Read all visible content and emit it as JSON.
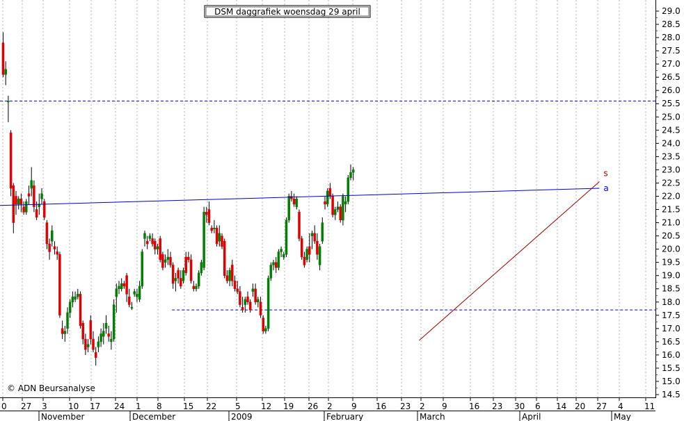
{
  "chart_data": {
    "type": "candlestick",
    "title": "DSM daggrafiek woensdag 29 april",
    "credit": "© ADN Beursanalyse",
    "ylim": [
      14.3,
      29.3
    ],
    "y_ticks": [
      "29.0",
      "28.5",
      "28.0",
      "27.5",
      "27.0",
      "26.5",
      "26.0",
      "25.5",
      "25.0",
      "24.5",
      "24.0",
      "23.5",
      "23.0",
      "22.5",
      "22.0",
      "21.5",
      "21.0",
      "20.5",
      "20.0",
      "19.5",
      "19.0",
      "18.5",
      "18.0",
      "17.5",
      "17.0",
      "16.5",
      "16.0",
      "15.5",
      "15.0",
      "14.5"
    ],
    "x_tick_labels": [
      "0",
      "27",
      "3",
      "10",
      "17",
      "24",
      "1",
      "8",
      "15",
      "22",
      "5",
      "12",
      "19",
      "26",
      "2",
      "9",
      "16",
      "23",
      "2",
      "9",
      "16",
      "23",
      "30",
      "6",
      "14",
      "20",
      "27",
      "4",
      "11"
    ],
    "month_labels": [
      "November",
      "December",
      "2009",
      "February",
      "March",
      "April",
      "May"
    ],
    "colors": {
      "up": "#008000",
      "down": "#e00000",
      "support": "#0000cc",
      "resistance": "#0000cc",
      "trend_a": "#0000cc",
      "trend_s": "#990000",
      "grid": "#b0b0b0"
    },
    "horizontal_lines": [
      {
        "value": 25.6,
        "style": "dashed"
      },
      {
        "value": 17.7,
        "style": "dashed",
        "start_index": 66
      }
    ],
    "trendlines": [
      {
        "label": "a",
        "from": {
          "index": 0,
          "value": 21.65
        },
        "to": {
          "index": 232,
          "value": 22.3
        }
      },
      {
        "label": "s",
        "from": {
          "index": 162,
          "value": 16.55
        },
        "to": {
          "index": 232,
          "value": 22.55
        }
      }
    ],
    "ohlc": [
      [
        27.8,
        28.2,
        26.5,
        26.6
      ],
      [
        26.6,
        27.1,
        26.2,
        26.8
      ],
      [
        25.6,
        25.8,
        24.8,
        25.6
      ],
      [
        24.4,
        24.5,
        22.0,
        22.3
      ],
      [
        22.4,
        22.5,
        20.6,
        21.0
      ],
      [
        22.0,
        22.2,
        21.3,
        21.7
      ],
      [
        21.7,
        22.0,
        21.5,
        21.9
      ],
      [
        21.9,
        22.1,
        21.4,
        21.7
      ],
      [
        21.6,
        21.8,
        21.3,
        21.4
      ],
      [
        21.4,
        21.9,
        21.3,
        21.8
      ],
      [
        22.1,
        22.4,
        21.7,
        22.0
      ],
      [
        22.3,
        23.1,
        22.0,
        22.6
      ],
      [
        22.4,
        22.6,
        21.4,
        21.6
      ],
      [
        21.5,
        21.8,
        21.1,
        21.2
      ],
      [
        21.6,
        22.1,
        21.3,
        21.7
      ],
      [
        21.9,
        22.3,
        21.7,
        22.1
      ],
      [
        21.8,
        21.9,
        21.1,
        21.2
      ],
      [
        21.0,
        21.1,
        20.0,
        20.2
      ],
      [
        20.2,
        20.4,
        19.6,
        19.9
      ],
      [
        20.3,
        20.9,
        20.1,
        20.7
      ],
      [
        20.1,
        20.3,
        19.8,
        20.0
      ],
      [
        19.9,
        20.1,
        19.6,
        19.8
      ],
      [
        19.8,
        19.9,
        17.4,
        17.5
      ],
      [
        17.0,
        17.3,
        16.6,
        16.8
      ],
      [
        16.8,
        17.1,
        16.5,
        16.9
      ],
      [
        17.0,
        17.8,
        16.8,
        17.6
      ],
      [
        17.6,
        18.1,
        17.4,
        18.0
      ],
      [
        18.0,
        18.4,
        17.8,
        18.2
      ],
      [
        18.1,
        18.4,
        18.0,
        18.2
      ],
      [
        18.2,
        18.5,
        18.1,
        18.3
      ],
      [
        18.3,
        18.4,
        17.0,
        17.1
      ],
      [
        17.2,
        17.3,
        16.4,
        16.6
      ],
      [
        16.6,
        16.8,
        16.0,
        16.2
      ],
      [
        16.3,
        16.6,
        16.1,
        16.4
      ],
      [
        17.3,
        17.5,
        16.4,
        16.6
      ],
      [
        16.6,
        16.9,
        16.1,
        16.2
      ],
      [
        16.1,
        16.3,
        15.6,
        15.9
      ],
      [
        16.3,
        16.7,
        16.1,
        16.5
      ],
      [
        16.5,
        17.0,
        16.3,
        16.8
      ],
      [
        16.7,
        17.2,
        16.4,
        16.9
      ],
      [
        17.0,
        17.5,
        16.8,
        17.2
      ],
      [
        16.8,
        17.1,
        16.5,
        16.7
      ],
      [
        16.5,
        16.9,
        16.2,
        16.6
      ],
      [
        16.6,
        18.1,
        16.5,
        17.9
      ],
      [
        18.2,
        18.7,
        17.6,
        18.5
      ],
      [
        18.5,
        18.8,
        18.3,
        18.6
      ],
      [
        18.5,
        18.9,
        18.4,
        18.7
      ],
      [
        18.7,
        18.8,
        18.5,
        18.6
      ],
      [
        19.0,
        19.1,
        18.0,
        18.3
      ],
      [
        18.2,
        18.5,
        17.8,
        17.9
      ],
      [
        17.8,
        18.0,
        17.7,
        17.8
      ],
      [
        18.3,
        18.5,
        18.2,
        18.4
      ],
      [
        18.2,
        18.5,
        18.0,
        18.3
      ],
      [
        18.1,
        18.8,
        18.0,
        18.6
      ],
      [
        18.6,
        20.0,
        18.5,
        19.9
      ],
      [
        20.4,
        20.7,
        20.1,
        20.6
      ],
      [
        20.3,
        20.5,
        20.0,
        20.2
      ],
      [
        20.4,
        20.6,
        20.3,
        20.5
      ],
      [
        20.4,
        20.6,
        20.1,
        20.2
      ],
      [
        20.3,
        20.4,
        19.8,
        20.0
      ],
      [
        20.0,
        20.2,
        19.8,
        20.1
      ],
      [
        20.4,
        20.5,
        19.5,
        19.6
      ],
      [
        19.8,
        19.9,
        19.2,
        19.3
      ],
      [
        19.5,
        19.8,
        19.3,
        19.6
      ],
      [
        19.6,
        20.0,
        19.4,
        19.7
      ],
      [
        19.7,
        19.9,
        19.3,
        19.4
      ],
      [
        19.4,
        19.5,
        18.5,
        18.7
      ],
      [
        18.8,
        19.1,
        18.4,
        18.9
      ],
      [
        19.2,
        19.3,
        18.7,
        18.9
      ],
      [
        18.9,
        19.2,
        18.5,
        18.6
      ],
      [
        18.8,
        19.3,
        18.7,
        19.2
      ],
      [
        19.7,
        19.9,
        19.0,
        19.1
      ],
      [
        19.7,
        19.9,
        19.5,
        19.6
      ],
      [
        19.6,
        19.8,
        18.7,
        18.8
      ],
      [
        18.6,
        18.8,
        18.4,
        18.5
      ],
      [
        18.5,
        18.7,
        18.4,
        18.6
      ],
      [
        18.6,
        19.2,
        18.5,
        19.1
      ],
      [
        19.1,
        19.6,
        19.0,
        19.5
      ],
      [
        19.3,
        21.6,
        19.2,
        21.4
      ],
      [
        21.4,
        21.6,
        21.0,
        21.3
      ],
      [
        21.5,
        21.8,
        20.9,
        21.0
      ],
      [
        20.8,
        20.9,
        20.6,
        20.7
      ],
      [
        20.8,
        21.1,
        20.6,
        20.8
      ],
      [
        20.8,
        20.9,
        20.1,
        20.2
      ],
      [
        20.3,
        20.9,
        20.1,
        20.6
      ],
      [
        20.5,
        20.6,
        20.0,
        20.1
      ],
      [
        20.3,
        20.4,
        18.9,
        19.0
      ],
      [
        19.0,
        19.2,
        18.7,
        18.8
      ],
      [
        18.8,
        19.3,
        18.6,
        19.2
      ],
      [
        19.4,
        19.6,
        18.6,
        18.8
      ],
      [
        18.8,
        19.0,
        18.4,
        18.5
      ],
      [
        18.5,
        18.8,
        18.3,
        18.4
      ],
      [
        18.4,
        18.6,
        17.8,
        17.9
      ],
      [
        17.8,
        18.2,
        17.6,
        17.7
      ],
      [
        17.9,
        18.2,
        17.6,
        18.1
      ],
      [
        18.2,
        18.4,
        17.9,
        18.0
      ],
      [
        18.0,
        18.1,
        17.6,
        17.7
      ],
      [
        18.4,
        18.7,
        18.2,
        18.5
      ],
      [
        18.5,
        18.7,
        17.9,
        18.0
      ],
      [
        18.0,
        18.2,
        17.8,
        18.1
      ],
      [
        18.0,
        18.2,
        17.4,
        17.5
      ],
      [
        17.4,
        17.5,
        16.8,
        16.9
      ],
      [
        16.9,
        17.1,
        16.8,
        17.0
      ],
      [
        17.0,
        19.0,
        16.9,
        18.9
      ],
      [
        18.9,
        19.5,
        18.8,
        19.4
      ],
      [
        19.4,
        19.6,
        19.2,
        19.5
      ],
      [
        19.5,
        19.7,
        19.1,
        19.3
      ],
      [
        19.3,
        20.0,
        19.2,
        19.9
      ],
      [
        19.9,
        20.1,
        19.7,
        20.0
      ],
      [
        19.7,
        19.9,
        19.6,
        19.8
      ],
      [
        19.8,
        21.2,
        19.7,
        21.1
      ],
      [
        21.1,
        22.1,
        21.0,
        22.0
      ],
      [
        22.0,
        22.2,
        21.8,
        21.9
      ],
      [
        21.9,
        22.1,
        21.6,
        21.7
      ],
      [
        21.6,
        22.0,
        21.5,
        21.9
      ],
      [
        21.4,
        21.5,
        20.3,
        20.4
      ],
      [
        20.4,
        20.5,
        19.6,
        19.7
      ],
      [
        19.7,
        19.9,
        19.3,
        19.4
      ],
      [
        19.6,
        20.1,
        19.5,
        20.0
      ],
      [
        20.1,
        20.6,
        19.5,
        19.8
      ],
      [
        20.5,
        20.7,
        20.0,
        20.6
      ],
      [
        20.6,
        20.9,
        20.2,
        20.3
      ],
      [
        20.3,
        20.6,
        19.6,
        19.8
      ],
      [
        19.4,
        20.2,
        19.2,
        20.1
      ],
      [
        20.3,
        21.2,
        20.2,
        21.0
      ],
      [
        21.8,
        22.0,
        21.5,
        21.7
      ],
      [
        21.7,
        22.3,
        21.6,
        22.2
      ],
      [
        22.3,
        22.5,
        21.9,
        22.0
      ],
      [
        22.0,
        22.1,
        21.2,
        21.3
      ],
      [
        21.3,
        21.6,
        21.1,
        21.5
      ],
      [
        21.5,
        21.8,
        21.4,
        21.6
      ],
      [
        21.6,
        21.7,
        21.0,
        21.1
      ],
      [
        21.1,
        22.1,
        20.9,
        22.0
      ],
      [
        21.7,
        22.0,
        21.4,
        21.8
      ],
      [
        21.8,
        22.8,
        21.7,
        22.7
      ],
      [
        22.7,
        23.2,
        22.6,
        22.9
      ],
      [
        22.9,
        23.1,
        22.6,
        23.0
      ]
    ]
  }
}
